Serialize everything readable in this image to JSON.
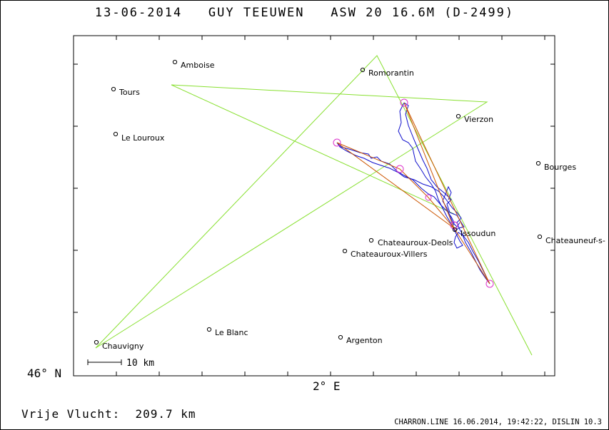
{
  "header": {
    "title": "13-06-2014   GUY TEEUWEN   ASW 20 16.6M (D-2499)"
  },
  "axes": {
    "lat_label": "46° N",
    "lon_label": "2° E"
  },
  "scale": {
    "label": "10 km"
  },
  "footer": {
    "distance": "Vrije Vlucht:  209.7 km",
    "credit": "CHARRON.LINE 16.06.2014, 19:42:22, DISLIN 10.3"
  },
  "colors": {
    "task_line": "#88e030",
    "track": "#1010cc",
    "legs": "#cc5500",
    "turnpoint": "#dd33cc",
    "frame": "#000000"
  },
  "towns": [
    {
      "name": "Amboise"
    },
    {
      "name": "Romorantin"
    },
    {
      "name": "Tours"
    },
    {
      "name": "Vierzon"
    },
    {
      "name": "Le Louroux"
    },
    {
      "name": "Bourges"
    },
    {
      "name": "Issoudun"
    },
    {
      "name": "Chateauroux-Deols"
    },
    {
      "name": "Chateauneuf-s-"
    },
    {
      "name": "Chateauroux-Villers"
    },
    {
      "name": "Le Blanc"
    },
    {
      "name": "Chauvigny"
    },
    {
      "name": "Argenton"
    }
  ]
}
